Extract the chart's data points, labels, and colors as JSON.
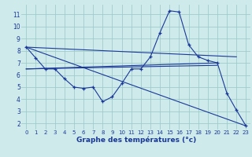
{
  "title": "Graphe des températures (°c)",
  "background_color": "#ceeaea",
  "grid_color": "#a0cccc",
  "line_color": "#1a3898",
  "xlim": [
    -0.5,
    23.5
  ],
  "ylim": [
    1.5,
    11.8
  ],
  "xticks": [
    0,
    1,
    2,
    3,
    4,
    5,
    6,
    7,
    8,
    9,
    10,
    11,
    12,
    13,
    14,
    15,
    16,
    17,
    18,
    19,
    20,
    21,
    22,
    23
  ],
  "yticks": [
    2,
    3,
    4,
    5,
    6,
    7,
    8,
    9,
    10,
    11
  ],
  "series": [
    [
      0,
      8.3
    ],
    [
      1,
      7.4
    ],
    [
      2,
      6.5
    ],
    [
      3,
      6.5
    ],
    [
      4,
      5.7
    ],
    [
      5,
      5.0
    ],
    [
      6,
      4.9
    ],
    [
      7,
      5.0
    ],
    [
      8,
      3.8
    ],
    [
      9,
      4.2
    ],
    [
      10,
      5.3
    ],
    [
      11,
      6.5
    ],
    [
      12,
      6.5
    ],
    [
      13,
      7.5
    ],
    [
      14,
      9.5
    ],
    [
      15,
      11.3
    ],
    [
      16,
      11.2
    ],
    [
      17,
      8.5
    ],
    [
      18,
      7.5
    ],
    [
      19,
      7.2
    ],
    [
      20,
      7.0
    ],
    [
      21,
      4.5
    ],
    [
      22,
      3.1
    ],
    [
      23,
      1.8
    ]
  ],
  "straight_lines": [
    [
      [
        0,
        8.3
      ],
      [
        23,
        1.8
      ]
    ],
    [
      [
        0,
        8.3
      ],
      [
        22,
        7.5
      ]
    ],
    [
      [
        0,
        6.5
      ],
      [
        20,
        7.0
      ]
    ],
    [
      [
        0,
        6.5
      ],
      [
        20,
        6.8
      ]
    ]
  ]
}
